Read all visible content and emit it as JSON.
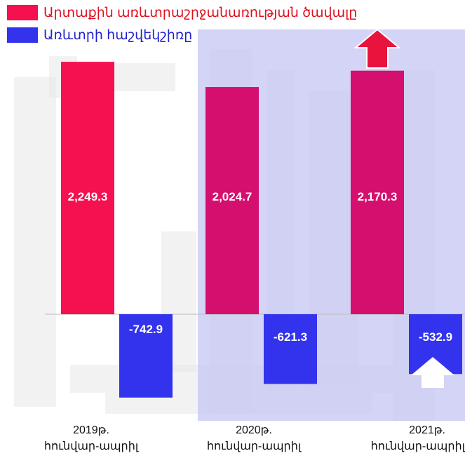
{
  "colors": {
    "exports_bar": "#f5104f",
    "exports_bar_shaded": "#d40f6e",
    "balance_bar": "#3333ee",
    "exports_legend_text": "#e01020",
    "balance_legend_text": "#2222cc",
    "highlight_panel": "#c8c8f4",
    "up_arrow_red": "#e8143e",
    "up_arrow_white": "#ffffff",
    "background_art": "#e8e8e8"
  },
  "legend": {
    "exports_label": "Արտաքին առևտրաշրջանառության ծավալը",
    "balance_label": "Առևտրի հաշվեկշիռը"
  },
  "periods": [
    {
      "year": "2019թ.",
      "months": "հունվար-ապրիլ"
    },
    {
      "year": "2020թ.",
      "months": "հունվար-ապրիլ"
    },
    {
      "year": "2021թ.",
      "months": "հունվար-ապրիլ"
    }
  ],
  "chart_data": {
    "type": "bar",
    "categories": [
      "2019թ. հունվար-ապրիլ",
      "2020թ. հունվար-ապրիլ",
      "2021թ. հունվար-ապրիլ"
    ],
    "series": [
      {
        "name": "Արտաքին առևտրաշրջանառության ծավալը",
        "values": [
          2249.3,
          2024.7,
          2170.3
        ],
        "labels": [
          "2,249.3",
          "2,024.7",
          "2,170.3"
        ]
      },
      {
        "name": "Առևտրի հաշվեկշիռը",
        "values": [
          -742.9,
          -621.3,
          -532.9
        ],
        "labels": [
          "-742.9",
          "-621.3",
          "-532.9"
        ]
      }
    ],
    "ylim": [
      -800,
      2300
    ],
    "grid": false,
    "legend_placement": "top-left",
    "annotations": {
      "exports_2021_trend": "up",
      "balance_2021_trend": "up"
    }
  }
}
